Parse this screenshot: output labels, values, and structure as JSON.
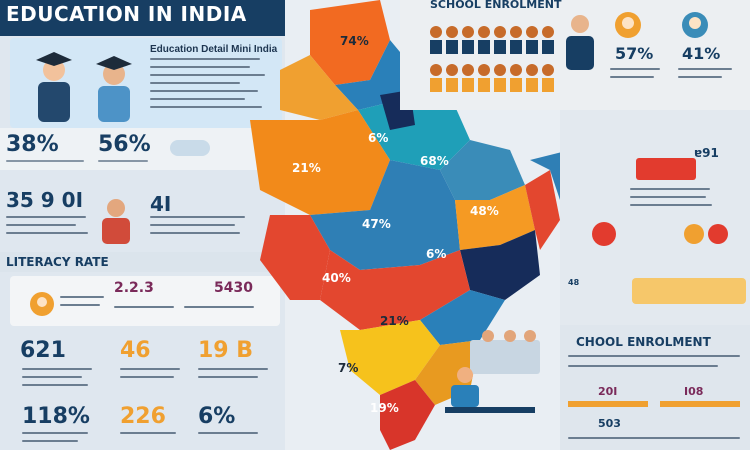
{
  "header": {
    "title": "EDUCATION IN INDIA",
    "subtitle": "Education Detail Mini India"
  },
  "left_stats": {
    "stat_1": "38%",
    "stat_2": "56%",
    "stat_3": "35 9 0I",
    "stat_4": "4I"
  },
  "literacy": {
    "section_title": "LITERACY RATE",
    "value_a": "2.2.3",
    "value_b": "5430"
  },
  "bottom_stats": {
    "row1": [
      "621",
      "46",
      "19 B"
    ],
    "row2": [
      "118%",
      "226",
      "6%"
    ]
  },
  "map": {
    "labels": [
      "74%",
      "6%",
      "68%",
      "21%",
      "48%",
      "47%",
      "6%",
      "40%",
      "21%",
      "7%",
      "19%"
    ]
  },
  "enrolment_top": {
    "title": "SCHOOL ENROLMENT",
    "pct_1": "57%",
    "pct_2": "41%"
  },
  "right_mid": {
    "label": "ɐ91",
    "value": "48"
  },
  "enrolment_bottom": {
    "title": "CHOOL ENROLMENT",
    "value_1": "20I",
    "value_2": "I08",
    "value_3": "503"
  },
  "colors": {
    "navy": "#173e63",
    "orange": "#f08a24",
    "red": "#e23b2e",
    "teal": "#2f8fb4",
    "yellow": "#f6c21c"
  }
}
